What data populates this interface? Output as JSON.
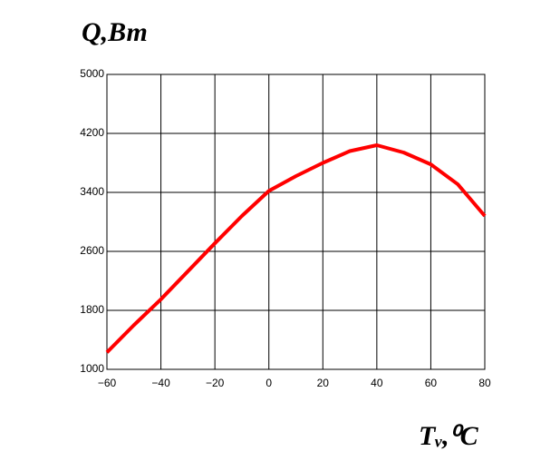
{
  "chart_data": {
    "type": "line",
    "y_label": "Q,Вт",
    "x_label": "Tᵥ,⁰C",
    "x": [
      -60,
      -50,
      -40,
      -30,
      -20,
      -10,
      0,
      10,
      20,
      30,
      40,
      50,
      60,
      70,
      80
    ],
    "series": [
      {
        "color": "#ff0000",
        "values": [
          1230,
          1600,
          1950,
          2330,
          2710,
          3080,
          3420,
          3620,
          3800,
          3960,
          4040,
          3940,
          3780,
          3510,
          3080
        ]
      }
    ],
    "xlim": [
      -60,
      80
    ],
    "xticks": [
      {
        "value": -60,
        "label": "−60"
      },
      {
        "value": -40,
        "label": "−40"
      },
      {
        "value": -20,
        "label": "−20"
      },
      0,
      20,
      40,
      60,
      80
    ],
    "ylim": [
      1000,
      5000
    ],
    "yticks": [
      1000,
      1800,
      2600,
      3400,
      4200,
      5000
    ],
    "grid": true
  }
}
